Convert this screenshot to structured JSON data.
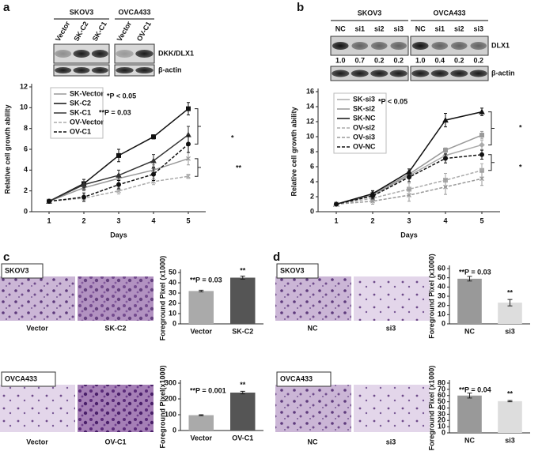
{
  "figure": {
    "panel_labels": [
      "a",
      "b",
      "c",
      "d"
    ],
    "blot_a": {
      "groups": [
        {
          "cell_line": "SKOV3",
          "lanes": [
            "Vector",
            "SK-C2",
            "SK-C1"
          ]
        },
        {
          "cell_line": "OVCA433",
          "lanes": [
            "Vector",
            "OV-C1"
          ]
        }
      ],
      "rows": [
        "DKK/DLX1",
        "β-actin"
      ]
    },
    "blot_b": {
      "groups": [
        {
          "cell_line": "SKOV3",
          "lanes": [
            "NC",
            "si1",
            "si2",
            "si3"
          ],
          "quantification": [
            "1.0",
            "0.7",
            "0.2",
            "0.2"
          ]
        },
        {
          "cell_line": "OVCA433",
          "lanes": [
            "NC",
            "si1",
            "si2",
            "si3"
          ],
          "quantification": [
            "1.0",
            "0.4",
            "0.2",
            "0.2"
          ]
        }
      ],
      "rows": [
        "DLX1",
        "β-actin"
      ]
    },
    "micro_c": [
      {
        "cell_line": "SKOV3",
        "labels": [
          "Vector",
          "SK-C2"
        ]
      },
      {
        "cell_line": "OVCA433",
        "labels": [
          "Vector",
          "OV-C1"
        ]
      }
    ],
    "micro_d": [
      {
        "cell_line": "SKOV3",
        "labels": [
          "NC",
          "si3"
        ]
      },
      {
        "cell_line": "OVCA433",
        "labels": [
          "NC",
          "si3"
        ]
      }
    ]
  },
  "chart_data": [
    {
      "type": "line",
      "xlabel": "Days",
      "ylabel": "Relative cell growth ability",
      "x": [
        1,
        2,
        3,
        4,
        5
      ],
      "xlim": [
        0.5,
        5.5
      ],
      "xticks": [
        1,
        2,
        3,
        4,
        5
      ],
      "ylim": [
        0,
        12
      ],
      "yticks": [
        0,
        2,
        4,
        6,
        8,
        10,
        12
      ],
      "annotations": [
        "*P < 0.05",
        "**P = 0.03",
        "*",
        "**"
      ],
      "series": [
        {
          "name": "SK-Vector",
          "color": "#999999",
          "line_style": "solid",
          "marker": "x",
          "values": [
            1,
            2.3,
            3.2,
            4.0,
            5.1
          ],
          "errors": [
            0.1,
            0.3,
            0.4,
            0.5,
            0.6
          ]
        },
        {
          "name": "SK-C2",
          "color": "#111111",
          "line_style": "solid",
          "marker": "square",
          "values": [
            1,
            2.7,
            5.4,
            7.2,
            9.9
          ],
          "errors": [
            0.1,
            0.4,
            0.6,
            0.2,
            0.6
          ]
        },
        {
          "name": "SK-C1",
          "color": "#333333",
          "line_style": "solid",
          "marker": "triangle",
          "values": [
            1,
            2.6,
            3.5,
            4.9,
            7.4
          ],
          "errors": [
            0.1,
            0.5,
            0.5,
            0.6,
            0.8
          ]
        },
        {
          "name": "OV-Vector",
          "color": "#aaaaaa",
          "line_style": "dashed",
          "marker": "x",
          "values": [
            1,
            1.3,
            2.0,
            2.9,
            3.4
          ],
          "errors": [
            0.1,
            0.3,
            0.3,
            0.3,
            0.2
          ]
        },
        {
          "name": "OV-C1",
          "color": "#111111",
          "line_style": "dashed",
          "marker": "circle",
          "values": [
            1,
            1.4,
            2.6,
            3.6,
            6.5
          ],
          "errors": [
            0.1,
            0.4,
            0.4,
            0.6,
            0.8
          ]
        }
      ]
    },
    {
      "type": "line",
      "xlabel": "Days",
      "ylabel": "Relative cell growth ability",
      "x": [
        1,
        2,
        3,
        4,
        5
      ],
      "xlim": [
        0.5,
        5.5
      ],
      "xticks": [
        1,
        2,
        3,
        4,
        5
      ],
      "ylim": [
        0,
        16
      ],
      "yticks": [
        0,
        2,
        4,
        6,
        8,
        10,
        12,
        14,
        16
      ],
      "annotations": [
        "*P < 0.05",
        "*",
        "*"
      ],
      "series": [
        {
          "name": "SK-si3",
          "color": "#aaaaaa",
          "line_style": "solid",
          "marker": "diamond",
          "values": [
            1,
            2.2,
            4.8,
            7.5,
            8.9
          ],
          "errors": [
            0.1,
            0.4,
            0.3,
            0.6,
            0.6
          ]
        },
        {
          "name": "SK-si2",
          "color": "#999999",
          "line_style": "solid",
          "marker": "square",
          "values": [
            1,
            2.3,
            5.0,
            8.2,
            10.2
          ],
          "errors": [
            0.1,
            0.4,
            0.3,
            0.3,
            0.5
          ]
        },
        {
          "name": "SK-NC",
          "color": "#111111",
          "line_style": "solid",
          "marker": "triangle",
          "values": [
            1,
            2.4,
            5.3,
            12.2,
            13.3
          ],
          "errors": [
            0.1,
            0.4,
            0.4,
            0.9,
            0.5
          ]
        },
        {
          "name": "OV-si2",
          "color": "#aaaaaa",
          "line_style": "dashed",
          "marker": "square",
          "values": [
            1,
            1.8,
            3.0,
            4.2,
            5.5
          ],
          "errors": [
            0.1,
            0.4,
            0.8,
            0.9,
            0.9
          ]
        },
        {
          "name": "OV-si3",
          "color": "#999999",
          "line_style": "dashed",
          "marker": "x",
          "values": [
            1,
            1.4,
            2.2,
            3.3,
            4.4
          ],
          "errors": [
            0.1,
            0.4,
            0.8,
            1.0,
            0.9
          ]
        },
        {
          "name": "OV-NC",
          "color": "#111111",
          "line_style": "dashed",
          "marker": "circle",
          "values": [
            1,
            2.1,
            4.6,
            7.1,
            7.6
          ],
          "errors": [
            0.1,
            0.4,
            0.6,
            0.6,
            0.6
          ]
        }
      ]
    },
    {
      "type": "bar",
      "ylabel": "Foreground Pixel (x1000)",
      "categories": [
        "Vector",
        "SK-C2"
      ],
      "values": [
        32,
        45
      ],
      "errors": [
        0.8,
        1.5
      ],
      "colors": [
        "#aaaaaa",
        "#555555"
      ],
      "ylim": [
        0,
        50
      ],
      "yticks": [
        0,
        10,
        20,
        30,
        40,
        50
      ],
      "annotations": [
        "**P = 0.03",
        "**"
      ]
    },
    {
      "type": "bar",
      "ylabel": "Foreground Pixel(x1000)",
      "categories": [
        "Vector",
        "OV-C1"
      ],
      "values": [
        97,
        240
      ],
      "errors": [
        3,
        8
      ],
      "colors": [
        "#aaaaaa",
        "#555555"
      ],
      "ylim": [
        0,
        300
      ],
      "yticks": [
        0,
        100,
        200,
        300
      ],
      "annotations": [
        "**P = 0.001",
        "**"
      ]
    },
    {
      "type": "bar",
      "ylabel": "Foreground Pixel (x1000)",
      "categories": [
        "NC",
        "si3"
      ],
      "values": [
        49,
        23
      ],
      "errors": [
        2.5,
        3.5
      ],
      "colors": [
        "#999999",
        "#dddddd"
      ],
      "ylim": [
        0,
        60
      ],
      "yticks": [
        0,
        10,
        20,
        30,
        40,
        50,
        60
      ],
      "annotations": [
        "**P = 0.03",
        "**"
      ]
    },
    {
      "type": "bar",
      "ylabel": "Foreground Pixel (x1000)",
      "categories": [
        "NC",
        "si3"
      ],
      "values": [
        60,
        51
      ],
      "errors": [
        4,
        1
      ],
      "colors": [
        "#999999",
        "#dddddd"
      ],
      "ylim": [
        0,
        80
      ],
      "yticks": [
        0,
        10,
        20,
        30,
        40,
        50,
        60,
        70,
        80
      ],
      "annotations": [
        "**P = 0.04",
        "**"
      ]
    }
  ]
}
